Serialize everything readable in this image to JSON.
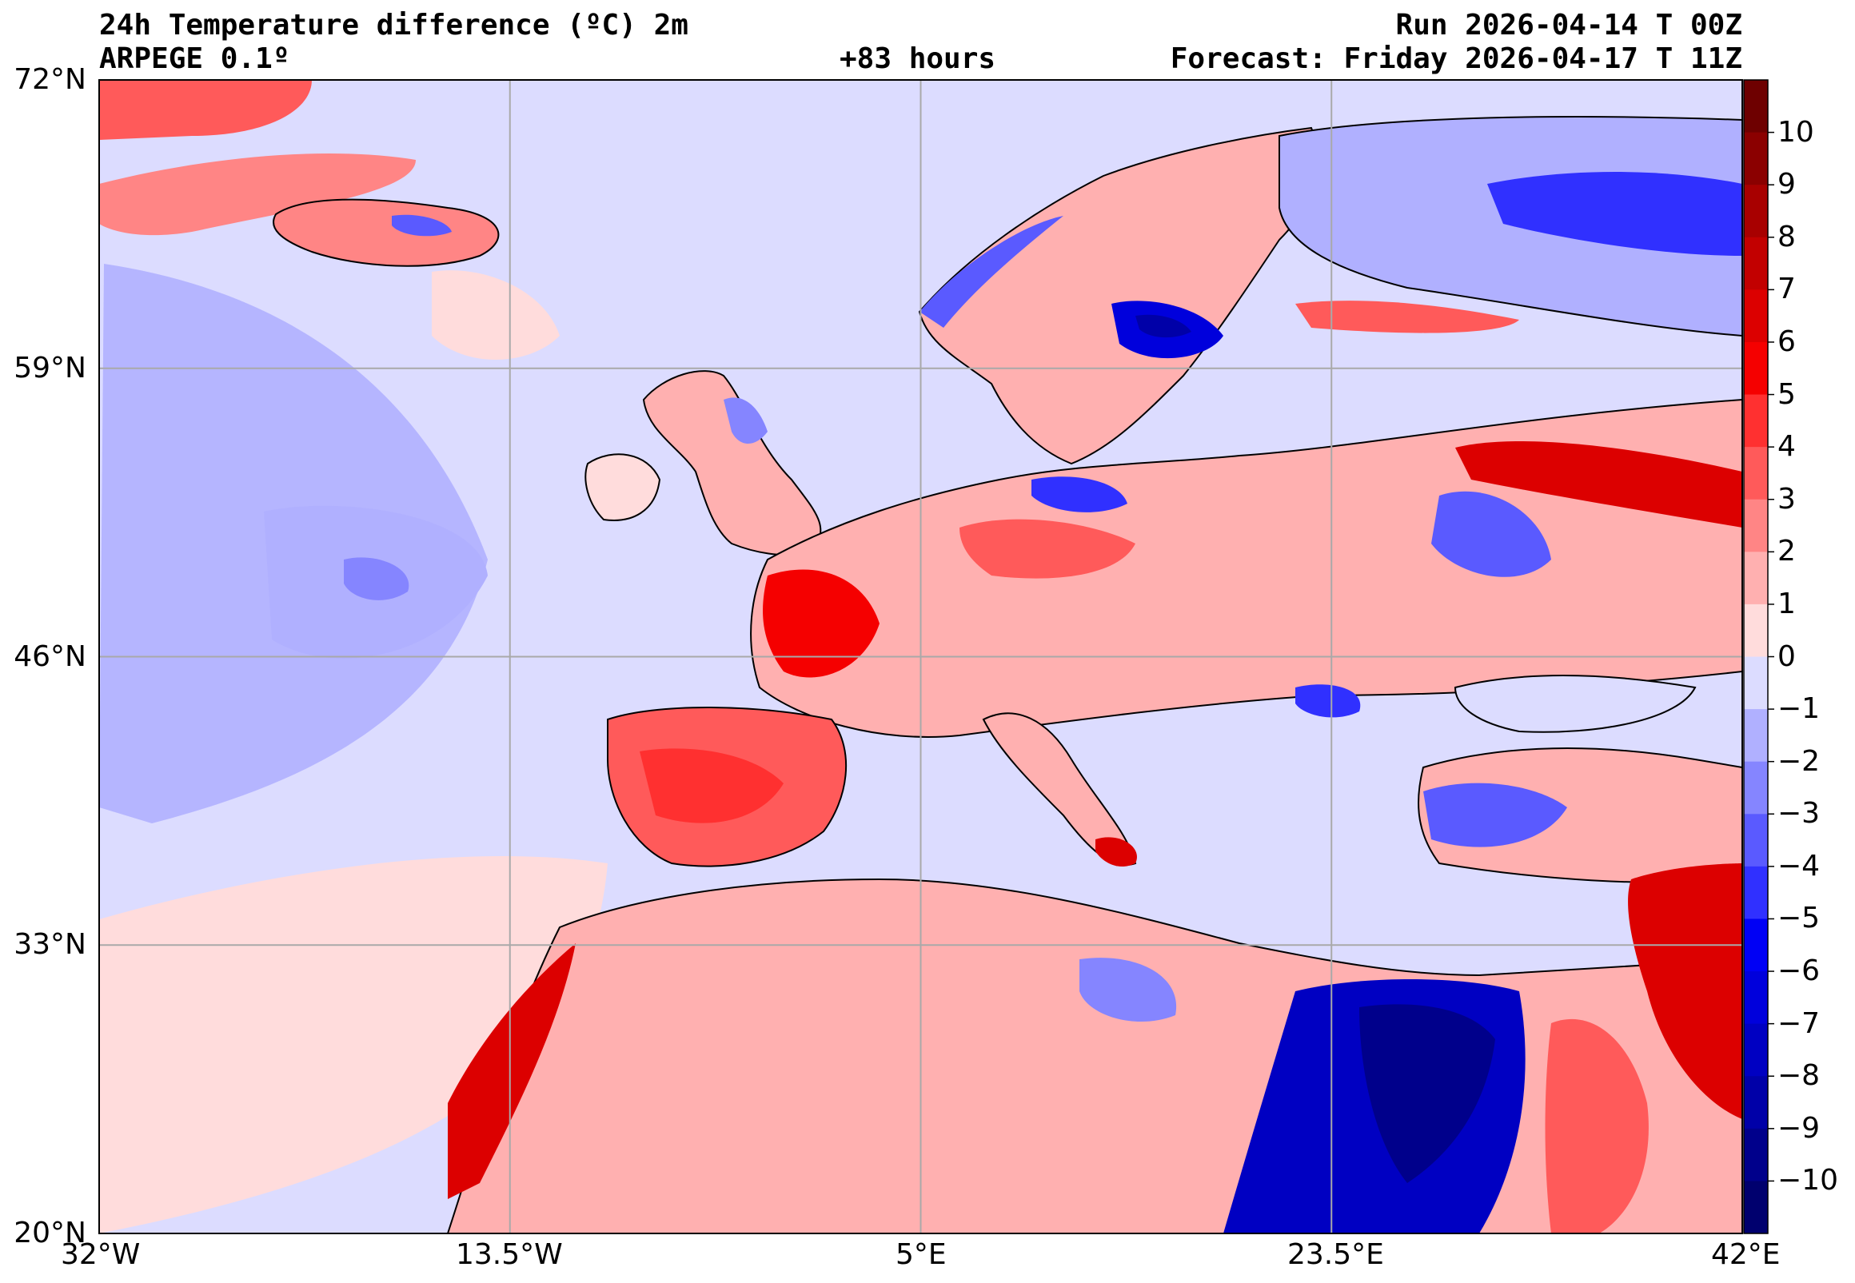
{
  "header": {
    "title": "24h Temperature difference (ºC) 2m",
    "model": "ARPEGE 0.1º",
    "lead_time": "+83 hours",
    "run": "Run 2026-04-14 T 00Z",
    "forecast": "Forecast: Friday 2026-04-17 T 11Z"
  },
  "map": {
    "lat_ticks": [
      "72°N",
      "59°N",
      "46°N",
      "33°N",
      "20°N"
    ],
    "lon_ticks": [
      "32°W",
      "13.5°W",
      "5°E",
      "23.5°E",
      "42°E"
    ],
    "extent": {
      "lon_min": -32,
      "lon_max": 42,
      "lat_min": 20,
      "lat_max": 72
    }
  },
  "colorbar": {
    "labels": [
      "10",
      "9",
      "8",
      "7",
      "6",
      "5",
      "4",
      "3",
      "2",
      "1",
      "0",
      "−1",
      "−2",
      "−3",
      "−4",
      "−5",
      "−6",
      "−7",
      "−8",
      "−9",
      "−10"
    ],
    "colors_top_to_bottom": [
      "#6e0000",
      "#8b0000",
      "#a80000",
      "#c20000",
      "#dc0000",
      "#f50000",
      "#ff3030",
      "#ff5a5a",
      "#ff8585",
      "#ffb0b0",
      "#ffdcdc",
      "#dcdcff",
      "#b0b0ff",
      "#8585ff",
      "#5a5aff",
      "#3030ff",
      "#0000f5",
      "#0000dc",
      "#0000c2",
      "#0000a8",
      "#00008b",
      "#00006e"
    ]
  },
  "palette": {
    "ocean_base": "#dcdcff",
    "land_base": "#ffdcdc",
    "grid": "#a9a9a9",
    "border": "#000000"
  }
}
